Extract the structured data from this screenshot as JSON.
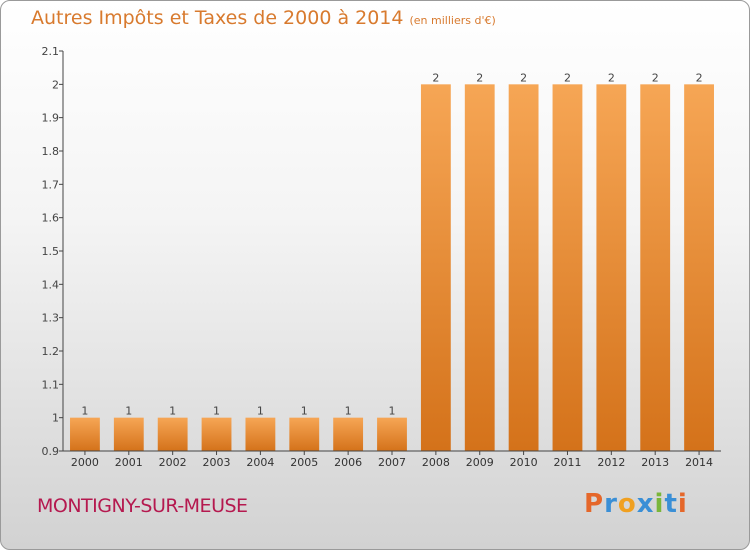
{
  "chart_data": {
    "type": "bar",
    "title": "Autres Impôts et Taxes de 2000 à 2014",
    "subtitle": "(en milliers d'€)",
    "categories": [
      "2000",
      "2001",
      "2002",
      "2003",
      "2004",
      "2005",
      "2006",
      "2007",
      "2008",
      "2009",
      "2010",
      "2011",
      "2012",
      "2013",
      "2014"
    ],
    "values": [
      1,
      1,
      1,
      1,
      1,
      1,
      1,
      1,
      2,
      2,
      2,
      2,
      2,
      2,
      2
    ],
    "data_labels": [
      "1",
      "1",
      "1",
      "1",
      "1",
      "1",
      "1",
      "1",
      "2",
      "2",
      "2",
      "2",
      "2",
      "2",
      "2"
    ],
    "ylim": [
      0.9,
      2.1
    ],
    "yticks": [
      0.9,
      1,
      1.1,
      1.2,
      1.3,
      1.4,
      1.5,
      1.6,
      1.7,
      1.8,
      1.9,
      2,
      2.1
    ],
    "ytick_labels": [
      "0.9",
      "1",
      "1.1",
      "1.2",
      "1.3",
      "1.4",
      "1.5",
      "1.6",
      "1.7",
      "1.8",
      "1.9",
      "2",
      "2.1"
    ],
    "xlabel": "",
    "ylabel": "",
    "grid": false,
    "bar_color_top": "#f6a655",
    "bar_color_bottom": "#d4721a"
  },
  "footer": {
    "place": "MONTIGNY-SUR-MEUSE",
    "logo_text": "Proxiti",
    "logo_colors": [
      "#e5672a",
      "#3a8fd6",
      "#f0a020",
      "#3a8fd6",
      "#7ab63a",
      "#3a8fd6",
      "#e5672a"
    ]
  }
}
